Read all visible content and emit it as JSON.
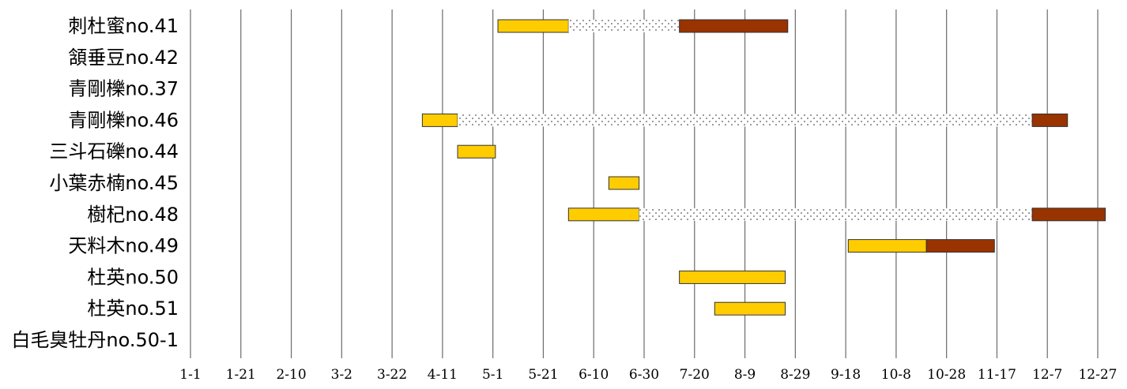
{
  "chart_data": {
    "type": "gantt",
    "title": "",
    "xlabel": "",
    "ylabel": "",
    "x_ticks": [
      "1-1",
      "1-21",
      "2-10",
      "3-2",
      "3-22",
      "4-11",
      "5-1",
      "5-21",
      "6-10",
      "6-30",
      "7-20",
      "8-9",
      "8-29",
      "9-18",
      "10-8",
      "10-28",
      "11-17",
      "12-7",
      "12-27"
    ],
    "x_range_days": [
      0,
      360
    ],
    "grid": "vertical",
    "colors": {
      "flower": "#ffcc00",
      "dotted": "#ffffff",
      "fruit": "#993300"
    },
    "rows": [
      {
        "label": "刺杜蜜no.41",
        "segments": [
          {
            "kind": "flower",
            "start": "5-3",
            "end": "5-31"
          },
          {
            "kind": "dotted",
            "start": "5-31",
            "end": "7-14"
          },
          {
            "kind": "fruit",
            "start": "7-14",
            "end": "8-26"
          }
        ]
      },
      {
        "label": "頷垂豆no.42",
        "segments": []
      },
      {
        "label": "青剛櫟no.37",
        "segments": []
      },
      {
        "label": "青剛櫟no.46",
        "segments": [
          {
            "kind": "flower",
            "start": "4-3",
            "end": "4-17"
          },
          {
            "kind": "dotted",
            "start": "4-17",
            "end": "12-1"
          },
          {
            "kind": "fruit",
            "start": "12-1",
            "end": "12-15"
          }
        ]
      },
      {
        "label": "三斗石礫no.44",
        "segments": [
          {
            "kind": "flower",
            "start": "4-17",
            "end": "5-2"
          }
        ]
      },
      {
        "label": "小葉赤楠no.45",
        "segments": [
          {
            "kind": "flower",
            "start": "6-16",
            "end": "6-28"
          }
        ]
      },
      {
        "label": "樹杞no.48",
        "segments": [
          {
            "kind": "flower",
            "start": "5-31",
            "end": "6-28"
          },
          {
            "kind": "dotted",
            "start": "6-28",
            "end": "12-1"
          },
          {
            "kind": "fruit",
            "start": "12-1",
            "end": "12-30"
          }
        ]
      },
      {
        "label": "天料木no.49",
        "segments": [
          {
            "kind": "flower",
            "start": "9-19",
            "end": "10-20"
          },
          {
            "kind": "fruit",
            "start": "10-20",
            "end": "11-16"
          }
        ]
      },
      {
        "label": "杜英no.50",
        "segments": [
          {
            "kind": "flower",
            "start": "7-14",
            "end": "8-25"
          }
        ]
      },
      {
        "label": "杜英no.51",
        "segments": [
          {
            "kind": "flower",
            "start": "7-28",
            "end": "8-25"
          }
        ]
      },
      {
        "label": "白毛臭牡丹no.50-1",
        "segments": []
      }
    ]
  }
}
